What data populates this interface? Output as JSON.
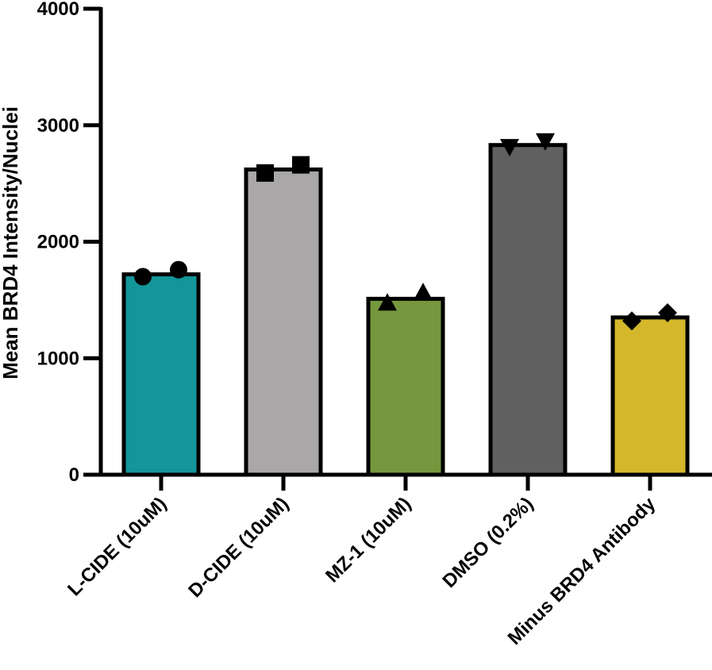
{
  "chart_data": {
    "type": "bar",
    "title": "",
    "xlabel": "",
    "ylabel": "Mean BRD4 Intensity/Nuclei",
    "ylim": [
      0,
      4000
    ],
    "yticks": [
      0,
      1000,
      2000,
      3000,
      4000
    ],
    "grid": false,
    "categories": [
      "L-CIDE (10uM)",
      "D-CIDE (10uM)",
      "MZ-1 (10uM)",
      "DMSO (0.2%)",
      "Minus BRD4 Antibody"
    ],
    "values": [
      1720,
      2620,
      1510,
      2830,
      1350
    ],
    "colors": [
      "#13959a",
      "#a9a7a8",
      "#76973d",
      "#606060",
      "#d4b72a"
    ],
    "markers": [
      "circle",
      "square",
      "triangle-up",
      "triangle-down",
      "diamond"
    ],
    "points": [
      [
        1700,
        1760
      ],
      [
        2590,
        2660
      ],
      [
        1470,
        1560
      ],
      [
        2820,
        2870
      ],
      [
        1320,
        1390
      ]
    ]
  }
}
